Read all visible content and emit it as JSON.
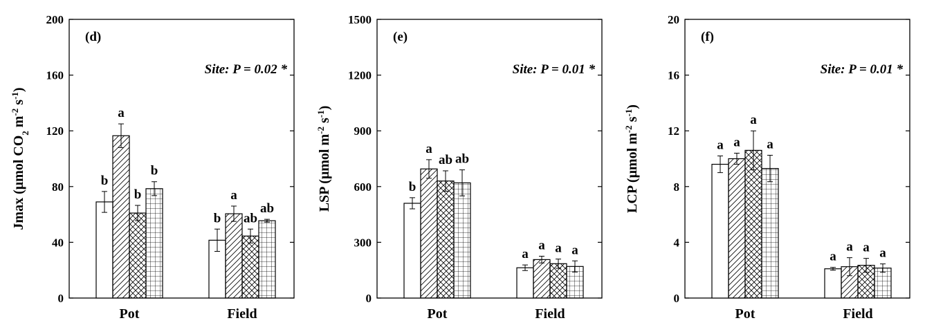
{
  "chart_data": [
    {
      "type": "bar",
      "panel_label": "(d)",
      "annotation": "Site: P = 0.02 *",
      "ylabel": "Jmax (μmol CO₂ m⁻² s⁻¹)",
      "ylabel_parts": [
        {
          "t": "Jmax (μmol CO"
        },
        {
          "t": "2",
          "sub": true
        },
        {
          "t": " m"
        },
        {
          "t": "-2",
          "sup": true
        },
        {
          "t": " s"
        },
        {
          "t": "-1",
          "sup": true
        },
        {
          "t": ")"
        }
      ],
      "ylim": [
        0,
        200
      ],
      "yticks": [
        "0",
        "40",
        "80",
        "120",
        "160",
        "200"
      ],
      "categories": [
        "Pot",
        "Field"
      ],
      "series": [
        {
          "pattern": "none",
          "values": [
            69,
            41.5
          ],
          "errors": [
            7.5,
            8
          ],
          "letters": [
            "b",
            "b"
          ]
        },
        {
          "pattern": "diagonal",
          "values": [
            116.5,
            60.5
          ],
          "errors": [
            8.5,
            5.5
          ],
          "letters": [
            "a",
            "a"
          ]
        },
        {
          "pattern": "crosshatch",
          "values": [
            61,
            44.5
          ],
          "errors": [
            5.5,
            5
          ],
          "letters": [
            "b",
            "ab"
          ]
        },
        {
          "pattern": "grid",
          "values": [
            78.5,
            55.5
          ],
          "errors": [
            5,
            1
          ],
          "letters": [
            "b",
            "ab"
          ]
        }
      ]
    },
    {
      "type": "bar",
      "panel_label": "(e)",
      "annotation": "Site: P = 0.01 *",
      "ylabel": "LSP (μmol m⁻² s⁻¹)",
      "ylabel_parts": [
        {
          "t": "LSP (μmol m"
        },
        {
          "t": "-2",
          "sup": true
        },
        {
          "t": " s"
        },
        {
          "t": "-1",
          "sup": true
        },
        {
          "t": ")"
        }
      ],
      "ylim": [
        0,
        1500
      ],
      "yticks": [
        "0",
        "300",
        "600",
        "900",
        "1200",
        "1500"
      ],
      "categories": [
        "Pot",
        "Field"
      ],
      "series": [
        {
          "pattern": "none",
          "values": [
            510,
            163
          ],
          "errors": [
            30,
            15
          ],
          "letters": [
            "b",
            "a"
          ]
        },
        {
          "pattern": "diagonal",
          "values": [
            695,
            207
          ],
          "errors": [
            50,
            18
          ],
          "letters": [
            "a",
            "a"
          ]
        },
        {
          "pattern": "crosshatch",
          "values": [
            630,
            185
          ],
          "errors": [
            55,
            25
          ],
          "letters": [
            "ab",
            "a"
          ]
        },
        {
          "pattern": "grid",
          "values": [
            620,
            170
          ],
          "errors": [
            70,
            30
          ],
          "letters": [
            "ab",
            "a"
          ]
        }
      ]
    },
    {
      "type": "bar",
      "panel_label": "(f)",
      "annotation": "Site: P = 0.01 *",
      "ylabel": "LCP (μmol m⁻² s⁻¹)",
      "ylabel_parts": [
        {
          "t": "LCP (μmol m"
        },
        {
          "t": "-2",
          "sup": true
        },
        {
          "t": " s"
        },
        {
          "t": "-1",
          "sup": true
        },
        {
          "t": ")"
        }
      ],
      "ylim": [
        0,
        20
      ],
      "yticks": [
        "0",
        "4",
        "8",
        "12",
        "16",
        "20"
      ],
      "categories": [
        "Pot",
        "Field"
      ],
      "series": [
        {
          "pattern": "none",
          "values": [
            9.6,
            2.1
          ],
          "errors": [
            0.6,
            0.1
          ],
          "letters": [
            "a",
            "a"
          ]
        },
        {
          "pattern": "diagonal",
          "values": [
            10.0,
            2.25
          ],
          "errors": [
            0.4,
            0.65
          ],
          "letters": [
            "a",
            "a"
          ]
        },
        {
          "pattern": "crosshatch",
          "values": [
            10.6,
            2.35
          ],
          "errors": [
            1.4,
            0.5
          ],
          "letters": [
            "a",
            "a"
          ]
        },
        {
          "pattern": "grid",
          "values": [
            9.3,
            2.15
          ],
          "errors": [
            0.95,
            0.3
          ],
          "letters": [
            "a",
            "a"
          ]
        }
      ]
    }
  ]
}
